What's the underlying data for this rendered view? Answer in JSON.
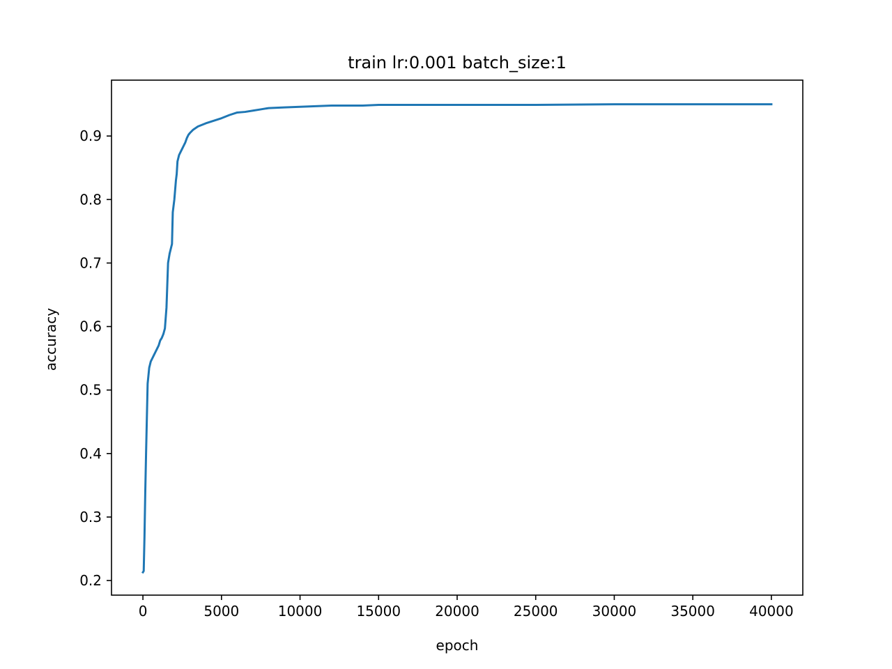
{
  "chart_data": {
    "type": "line",
    "title": "train lr:0.001 batch_size:1",
    "xlabel": "epoch",
    "ylabel": "accuracy",
    "xlim": [
      -2000,
      42000
    ],
    "ylim": [
      0.177,
      0.988
    ],
    "xticks": [
      0,
      5000,
      10000,
      15000,
      20000,
      25000,
      30000,
      35000,
      40000
    ],
    "yticks": [
      0.2,
      0.3,
      0.4,
      0.5,
      0.6,
      0.7,
      0.8,
      0.9
    ],
    "xtick_labels": [
      "0",
      "5000",
      "10000",
      "15000",
      "20000",
      "25000",
      "30000",
      "35000",
      "40000"
    ],
    "ytick_labels": [
      "0.2",
      "0.3",
      "0.4",
      "0.5",
      "0.6",
      "0.7",
      "0.8",
      "0.9"
    ],
    "grid": false,
    "line_color": "#1f77b4",
    "series": [
      {
        "x": [
          0,
          50,
          100,
          150,
          200,
          300,
          400,
          500,
          600,
          700,
          800,
          900,
          1000,
          1100,
          1200,
          1300,
          1400,
          1500,
          1600,
          1700,
          1750,
          1800,
          1850,
          1900,
          2000,
          2100,
          2150,
          2200,
          2300,
          2400,
          2500,
          2600,
          2700,
          2800,
          2900,
          3000,
          3200,
          3500,
          4000,
          4500,
          5000,
          5500,
          6000,
          6500,
          7000,
          7500,
          8000,
          9000,
          10000,
          11000,
          12000,
          13000,
          14000,
          15000,
          17000,
          20000,
          25000,
          30000,
          35000,
          40000
        ],
        "y": [
          0.213,
          0.215,
          0.27,
          0.34,
          0.4,
          0.51,
          0.535,
          0.545,
          0.55,
          0.555,
          0.56,
          0.565,
          0.57,
          0.578,
          0.582,
          0.588,
          0.597,
          0.63,
          0.7,
          0.715,
          0.72,
          0.725,
          0.73,
          0.78,
          0.8,
          0.83,
          0.84,
          0.86,
          0.87,
          0.875,
          0.88,
          0.885,
          0.89,
          0.897,
          0.902,
          0.905,
          0.91,
          0.915,
          0.92,
          0.924,
          0.928,
          0.933,
          0.937,
          0.938,
          0.94,
          0.942,
          0.944,
          0.945,
          0.946,
          0.947,
          0.948,
          0.948,
          0.948,
          0.949,
          0.949,
          0.949,
          0.949,
          0.95,
          0.95,
          0.95
        ]
      }
    ]
  }
}
